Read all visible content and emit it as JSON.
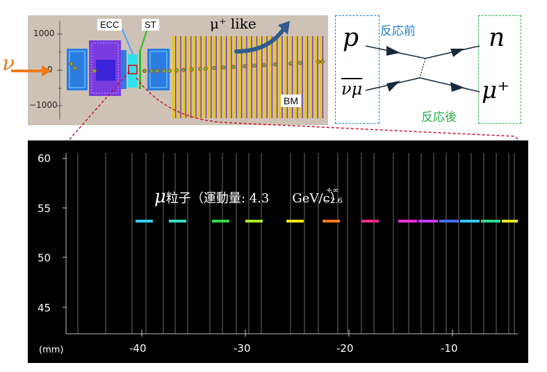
{
  "detector_view": {
    "y_ticks": [
      "1000",
      "0",
      "−1000"
    ],
    "neutrino_label": "ν",
    "component_labels": {
      "ecc": "ECC",
      "st": "ST",
      "bm": "BM"
    },
    "track_label": "μ⁺ like"
  },
  "reaction_diagram": {
    "initial_particles": [
      "p",
      "νμ"
    ],
    "final_particles": [
      "n",
      "μ⁺"
    ],
    "before_label": "反応前",
    "after_label": "反応後"
  },
  "zoom_view": {
    "y_ticks": [
      "60",
      "55",
      "50",
      "45"
    ],
    "x_ticks": [
      "-40",
      "-30",
      "-20",
      "-10"
    ],
    "unit_label": "(mm)",
    "particle_label_prefix": "μ",
    "particle_label_text": "粒子（運動量: 4.3",
    "momentum_upper": "+∞",
    "momentum_lower": "−2.6",
    "particle_label_suffix": "GeV/c）"
  },
  "colors": {
    "neutrino_arrow": "#f07a18",
    "before_box": "#1e7fcf",
    "after_box": "#27b04a",
    "track_arrow": "#2f5b8e",
    "zoom_line": "#c8102e"
  }
}
